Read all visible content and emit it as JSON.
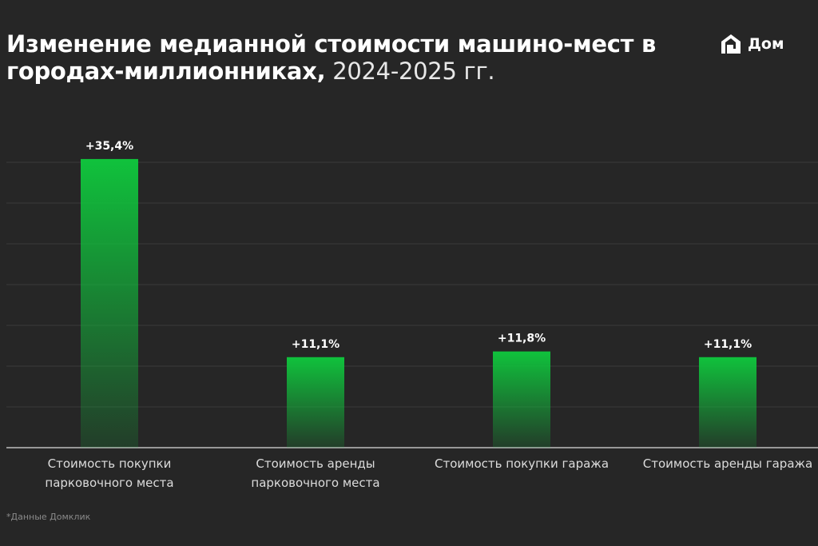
{
  "logo": "Дом",
  "chart_data": {
    "type": "bar",
    "title": "Изменение медианной стоимости машино-мест в городах-миллионниках,",
    "subtitle": "2024-2025 гг.",
    "categories": [
      "Стоимость покупки парковочного места",
      "Стоимость аренды парковочного места",
      "Стоимость покупки гаража",
      "Стоимость аренды гаража"
    ],
    "values": [
      35.4,
      11.1,
      11.8,
      11.1
    ],
    "value_labels": [
      "+35,4%",
      "+11,1%",
      "+11,8%",
      "+11,1%"
    ],
    "color": "#10c23c",
    "ylim": [
      0,
      40
    ],
    "yticks": [
      0,
      5,
      10,
      15,
      20,
      25,
      30,
      35
    ],
    "grid": true,
    "note": "*Данные Домклик"
  }
}
